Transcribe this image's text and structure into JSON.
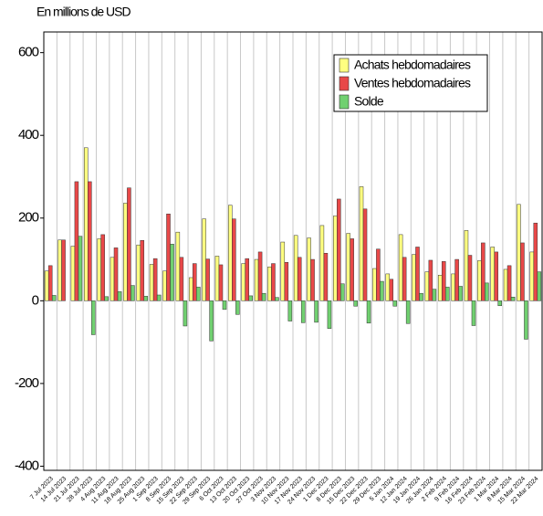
{
  "chart_data": {
    "type": "bar",
    "title": "En millions de USD",
    "categories": [
      "7 Jul 2023",
      "14 Jul 2023",
      "21 Jul 2023",
      "28 Jul 2023",
      "4 Aug 2023",
      "11 Aug 2023",
      "18 Aug 2023",
      "25 Aug 2023",
      "1 Sep 2023",
      "8 Sep 2023",
      "15 Sep 2023",
      "22 Sep 2023",
      "29 Sep 2023",
      "6 Oct 2023",
      "13 Oct 2023",
      "20 Oct 2023",
      "27 Oct 2023",
      "3 Nov 2023",
      "10 Nov 2023",
      "17 Nov 2023",
      "24 Nov 2023",
      "1 Dec 2023",
      "8 Dec 2023",
      "15 Dec 2023",
      "22 Dec 2023",
      "29 Dec 2023",
      "5 Jan 2024",
      "12 Jan 2024",
      "19 Jan 2024",
      "26 Jan 2024",
      "2 Feb 2024",
      "9 Feb 2024",
      "16 Feb 2024",
      "23 Feb 2024",
      "1 Mar 2024",
      "8 Mar 2024",
      "15 Mar 2024",
      "22 Mar 2024"
    ],
    "series": [
      {
        "name": "Achats hebdomadaires",
        "color": "#ffff80",
        "values": [
          72,
          147,
          132,
          370,
          150,
          105,
          236,
          135,
          88,
          72,
          166,
          56,
          198,
          108,
          231,
          90,
          100,
          82,
          142,
          158,
          152,
          182,
          205,
          163,
          276,
          78,
          65,
          160,
          112,
          70,
          62,
          65,
          170,
          97,
          130,
          76,
          233,
          118
        ]
      },
      {
        "name": "Ventes hebdomadaires",
        "color": "#e84848",
        "values": [
          85,
          147,
          288,
          288,
          160,
          128,
          273,
          146,
          102,
          210,
          105,
          90,
          101,
          87,
          198,
          102,
          118,
          90,
          93,
          105,
          100,
          115,
          246,
          150,
          222,
          125,
          52,
          105,
          130,
          98,
          95,
          100,
          110,
          140,
          118,
          85,
          140,
          188
        ]
      },
      {
        "name": "Solde",
        "color": "#70d070",
        "values": [
          13,
          0,
          156,
          -82,
          10,
          22,
          37,
          11,
          14,
          137,
          -61,
          33,
          -97,
          -21,
          -33,
          12,
          18,
          8,
          -49,
          -53,
          -52,
          -67,
          41,
          -13,
          -54,
          47,
          -13,
          -55,
          18,
          28,
          33,
          35,
          -60,
          43,
          -12,
          9,
          -93,
          70
        ]
      }
    ],
    "ylim": [
      -410,
      650
    ],
    "yticks": [
      -400,
      -200,
      0,
      200,
      400,
      600
    ],
    "grid": true,
    "legend": "top-right"
  }
}
